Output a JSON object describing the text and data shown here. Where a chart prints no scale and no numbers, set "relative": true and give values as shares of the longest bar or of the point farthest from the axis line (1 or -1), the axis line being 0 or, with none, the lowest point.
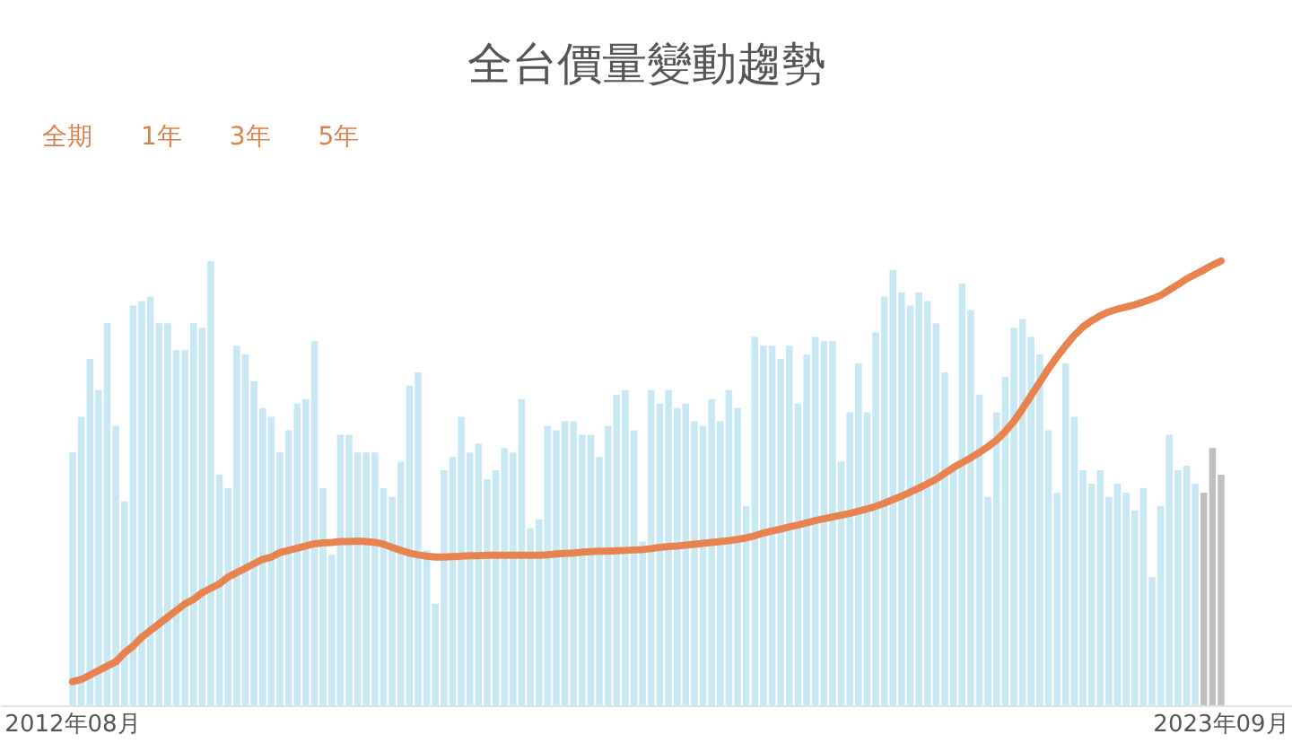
{
  "chart_data": {
    "type": "bar",
    "title": "全台價量變動趨勢",
    "relative": true,
    "annotations": [
      "全期",
      "1年",
      "3年",
      "5年"
    ],
    "categories": [
      "2012年08月",
      null,
      null,
      null,
      null,
      null,
      null,
      null,
      null,
      null,
      null,
      null,
      null,
      null,
      null,
      null,
      null,
      null,
      null,
      null,
      null,
      null,
      null,
      null,
      null,
      null,
      null,
      null,
      null,
      null,
      null,
      null,
      null,
      null,
      null,
      null,
      null,
      null,
      null,
      null,
      null,
      null,
      null,
      null,
      null,
      null,
      null,
      null,
      null,
      null,
      null,
      null,
      null,
      null,
      null,
      null,
      null,
      null,
      null,
      null,
      null,
      null,
      null,
      null,
      null,
      null,
      null,
      null,
      null,
      null,
      null,
      null,
      null,
      null,
      null,
      null,
      null,
      null,
      null,
      null,
      null,
      null,
      null,
      null,
      null,
      null,
      null,
      null,
      null,
      null,
      null,
      null,
      null,
      null,
      null,
      null,
      null,
      null,
      null,
      null,
      null,
      null,
      null,
      null,
      null,
      null,
      null,
      null,
      null,
      null,
      null,
      null,
      null,
      null,
      null,
      null,
      null,
      null,
      null,
      null,
      null,
      null,
      null,
      null,
      null,
      null,
      null,
      null,
      null,
      null,
      null,
      null,
      null,
      "2023年09月"
    ],
    "series": [
      {
        "colors": [
          "#c8e9f4",
          "#c8e9f4",
          "#c8e9f4",
          "#c8e9f4",
          "#c8e9f4",
          "#c8e9f4",
          "#c8e9f4",
          "#c8e9f4",
          "#c8e9f4",
          "#c8e9f4",
          "#c8e9f4",
          "#c8e9f4",
          "#c8e9f4",
          "#c8e9f4",
          "#c8e9f4",
          "#c8e9f4",
          "#c8e9f4",
          "#c8e9f4",
          "#c8e9f4",
          "#c8e9f4",
          "#c8e9f4",
          "#c8e9f4",
          "#c8e9f4",
          "#c8e9f4",
          "#c8e9f4",
          "#c8e9f4",
          "#c8e9f4",
          "#c8e9f4",
          "#c8e9f4",
          "#c8e9f4",
          "#c8e9f4",
          "#c8e9f4",
          "#c8e9f4",
          "#c8e9f4",
          "#c8e9f4",
          "#c8e9f4",
          "#c8e9f4",
          "#c8e9f4",
          "#c8e9f4",
          "#c8e9f4",
          "#c8e9f4",
          "#c8e9f4",
          "#c8e9f4",
          "#c8e9f4",
          "#c8e9f4",
          "#c8e9f4",
          "#c8e9f4",
          "#c8e9f4",
          "#c8e9f4",
          "#c8e9f4",
          "#c8e9f4",
          "#c8e9f4",
          "#c8e9f4",
          "#c8e9f4",
          "#c8e9f4",
          "#c8e9f4",
          "#c8e9f4",
          "#c8e9f4",
          "#c8e9f4",
          "#c8e9f4",
          "#c8e9f4",
          "#c8e9f4",
          "#c8e9f4",
          "#c8e9f4",
          "#c8e9f4",
          "#c8e9f4",
          "#c8e9f4",
          "#c8e9f4",
          "#c8e9f4",
          "#c8e9f4",
          "#c8e9f4",
          "#c8e9f4",
          "#c8e9f4",
          "#c8e9f4",
          "#c8e9f4",
          "#c8e9f4",
          "#c8e9f4",
          "#c8e9f4",
          "#c8e9f4",
          "#c8e9f4",
          "#c8e9f4",
          "#c8e9f4",
          "#c8e9f4",
          "#c8e9f4",
          "#c8e9f4",
          "#c8e9f4",
          "#c8e9f4",
          "#c8e9f4",
          "#c8e9f4",
          "#c8e9f4",
          "#c8e9f4",
          "#c8e9f4",
          "#c8e9f4",
          "#c8e9f4",
          "#c8e9f4",
          "#c8e9f4",
          "#c8e9f4",
          "#c8e9f4",
          "#c8e9f4",
          "#c8e9f4",
          "#c8e9f4",
          "#c8e9f4",
          "#c8e9f4",
          "#c8e9f4",
          "#c8e9f4",
          "#c8e9f4",
          "#c8e9f4",
          "#c8e9f4",
          "#c8e9f4",
          "#c8e9f4",
          "#c8e9f4",
          "#c8e9f4",
          "#c8e9f4",
          "#c8e9f4",
          "#c8e9f4",
          "#c8e9f4",
          "#c8e9f4",
          "#c8e9f4",
          "#c8e9f4",
          "#c8e9f4",
          "#c8e9f4",
          "#c8e9f4",
          "#c8e9f4",
          "#c8e9f4",
          "#c8e9f4",
          "#c8e9f4",
          "#c8e9f4",
          "#c8e9f4",
          "#c8e9f4",
          "#c8e9f4",
          "#c8e9f4",
          "#bfbfbf",
          "#bfbfbf",
          "#bfbfbf"
        ],
        "values": [
          0.57,
          0.65,
          0.78,
          0.71,
          0.86,
          0.63,
          0.46,
          0.9,
          0.91,
          0.92,
          0.86,
          0.86,
          0.8,
          0.8,
          0.86,
          0.85,
          1.0,
          0.52,
          0.49,
          0.81,
          0.79,
          0.73,
          0.67,
          0.65,
          0.57,
          0.62,
          0.68,
          0.69,
          0.82,
          0.49,
          0.34,
          0.61,
          0.61,
          0.57,
          0.57,
          0.57,
          0.49,
          0.47,
          0.55,
          0.72,
          0.75,
          0.35,
          0.23,
          0.53,
          0.56,
          0.65,
          0.57,
          0.59,
          0.51,
          0.53,
          0.58,
          0.57,
          0.69,
          0.4,
          0.42,
          0.63,
          0.62,
          0.64,
          0.64,
          0.61,
          0.61,
          0.56,
          0.63,
          0.7,
          0.71,
          0.62,
          0.37,
          0.71,
          0.68,
          0.71,
          0.67,
          0.68,
          0.64,
          0.63,
          0.69,
          0.64,
          0.71,
          0.67,
          0.45,
          0.83,
          0.81,
          0.81,
          0.78,
          0.81,
          0.68,
          0.79,
          0.83,
          0.82,
          0.82,
          0.55,
          0.66,
          0.77,
          0.66,
          0.84,
          0.92,
          0.98,
          0.93,
          0.9,
          0.93,
          0.91,
          0.86,
          0.75,
          0.53,
          0.95,
          0.89,
          0.7,
          0.47,
          0.66,
          0.74,
          0.85,
          0.87,
          0.83,
          0.79,
          0.62,
          0.48,
          0.77,
          0.65,
          0.53,
          0.5,
          0.53,
          0.47,
          0.5,
          0.48,
          0.44,
          0.49,
          0.29,
          0.45,
          0.61,
          0.53,
          0.54,
          0.5,
          0.48,
          0.58,
          0.52
        ]
      },
      {
        "type": "line",
        "color": "#e8834f",
        "values": [
          0.055,
          0.06,
          0.07,
          0.08,
          0.09,
          0.1,
          0.12,
          0.135,
          0.155,
          0.17,
          0.185,
          0.2,
          0.215,
          0.23,
          0.24,
          0.255,
          0.265,
          0.275,
          0.29,
          0.3,
          0.31,
          0.32,
          0.33,
          0.335,
          0.345,
          0.35,
          0.355,
          0.36,
          0.365,
          0.367,
          0.368,
          0.37,
          0.37,
          0.371,
          0.37,
          0.368,
          0.364,
          0.357,
          0.35,
          0.344,
          0.34,
          0.337,
          0.335,
          0.335,
          0.336,
          0.337,
          0.338,
          0.338,
          0.339,
          0.339,
          0.339,
          0.339,
          0.339,
          0.339,
          0.339,
          0.34,
          0.342,
          0.343,
          0.344,
          0.346,
          0.347,
          0.348,
          0.348,
          0.349,
          0.35,
          0.351,
          0.352,
          0.354,
          0.357,
          0.359,
          0.36,
          0.362,
          0.364,
          0.366,
          0.368,
          0.37,
          0.372,
          0.375,
          0.378,
          0.383,
          0.389,
          0.394,
          0.398,
          0.403,
          0.407,
          0.412,
          0.417,
          0.421,
          0.425,
          0.429,
          0.433,
          0.438,
          0.443,
          0.449,
          0.456,
          0.464,
          0.472,
          0.481,
          0.49,
          0.5,
          0.51,
          0.523,
          0.536,
          0.547,
          0.558,
          0.57,
          0.583,
          0.598,
          0.617,
          0.64,
          0.668,
          0.698,
          0.728,
          0.758,
          0.785,
          0.81,
          0.833,
          0.852,
          0.866,
          0.877,
          0.886,
          0.892,
          0.897,
          0.902,
          0.908,
          0.915,
          0.923,
          0.935,
          0.947,
          0.96,
          0.97,
          0.98,
          0.991,
          1.0
        ]
      }
    ]
  }
}
